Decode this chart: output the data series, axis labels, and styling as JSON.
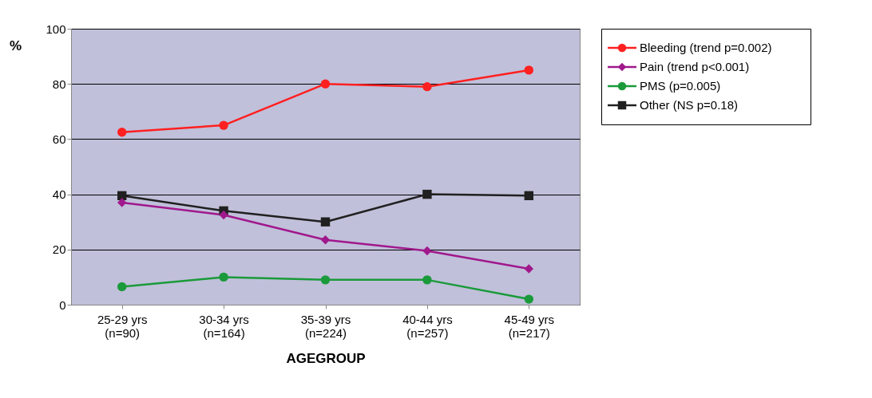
{
  "chart_data": {
    "type": "line",
    "xlabel": "AGEGROUP",
    "ylabel": "%",
    "categories": [
      "25-29 yrs\n(n=90)",
      "30-34 yrs\n(n=164)",
      "35-39 yrs\n(n=224)",
      "40-44 yrs\n(n=257)",
      "45-49 yrs\n(n=217)"
    ],
    "series": [
      {
        "name": "Bleeding (trend p=0.002)",
        "color": "#ff2020",
        "marker": "circle",
        "values": [
          62.5,
          65,
          80,
          79,
          85
        ]
      },
      {
        "name": "Pain (trend p<0.001)",
        "color": "#a0188c",
        "marker": "diamond",
        "values": [
          37,
          32.5,
          23.5,
          19.5,
          13
        ]
      },
      {
        "name": "PMS (p=0.005)",
        "color": "#1a9a3a",
        "marker": "circle",
        "values": [
          6.5,
          10,
          9,
          9,
          2
        ]
      },
      {
        "name": "Other (NS p=0.18)",
        "color": "#202020",
        "marker": "square",
        "values": [
          39.5,
          34,
          30,
          40,
          39.5
        ]
      }
    ],
    "ylim": [
      0,
      100
    ],
    "yticks": [
      0,
      20,
      40,
      60,
      80,
      100
    ],
    "grid": "y",
    "legend": "right",
    "line_style": "solid"
  }
}
